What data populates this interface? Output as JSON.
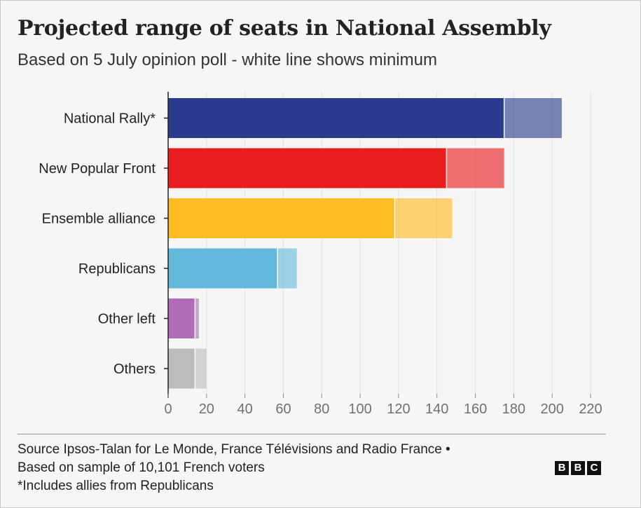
{
  "header": {
    "title": "Projected range of seats in National Assembly",
    "subtitle": "Based on 5 July opinion poll - white line shows minimum"
  },
  "chart_data": {
    "type": "bar",
    "orientation": "horizontal",
    "title": "Projected range of seats in National Assembly",
    "subtitle": "Based on 5 July opinion poll - white line shows minimum",
    "categories": [
      "National Rally*",
      "New Popular Front",
      "Ensemble alliance",
      "Republicans",
      "Other left",
      "Others"
    ],
    "series": [
      {
        "name": "Minimum",
        "values": [
          175,
          145,
          118,
          57,
          14,
          14
        ]
      },
      {
        "name": "Maximum",
        "values": [
          205,
          175,
          148,
          67,
          16,
          20
        ]
      }
    ],
    "colors": [
      "#2a3a8c",
      "#e81c1c",
      "#ffbb22",
      "#62b9db",
      "#b06cb8",
      "#bcbcbc"
    ],
    "xlim": [
      0,
      220
    ],
    "xticks": [
      "0",
      "20",
      "40",
      "60",
      "80",
      "100",
      "120",
      "140",
      "160",
      "180",
      "200",
      "220"
    ],
    "grid": true,
    "legend": "none"
  },
  "footer": {
    "lines": [
      "Source Ipsos-Talan for Le Monde, France Télévisions and Radio France •",
      "Based on sample of 10,101 French voters",
      "*Includes allies from Republicans"
    ],
    "logo_letters": [
      "B",
      "B",
      "C"
    ]
  }
}
